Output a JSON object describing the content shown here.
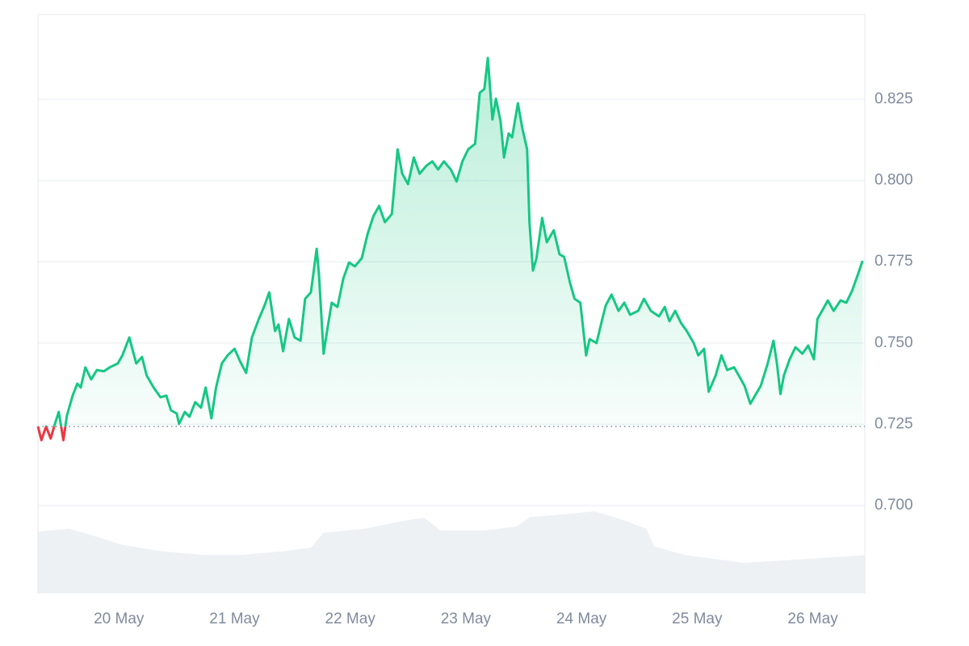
{
  "chart_data": {
    "type": "line",
    "x": [
      19.3,
      19.33,
      19.37,
      19.41,
      19.45,
      19.48,
      19.52,
      19.55,
      19.6,
      19.64,
      19.67,
      19.71,
      19.76,
      19.81,
      19.87,
      19.92,
      19.99,
      20.03,
      20.09,
      20.15,
      20.2,
      20.24,
      20.3,
      20.36,
      20.41,
      20.45,
      20.5,
      20.52,
      20.57,
      20.61,
      20.66,
      20.71,
      20.75,
      20.8,
      20.84,
      20.89,
      20.94,
      21.0,
      21.05,
      21.1,
      21.15,
      21.21,
      21.26,
      21.3,
      21.35,
      21.38,
      21.42,
      21.47,
      21.52,
      21.57,
      21.61,
      21.66,
      21.71,
      21.73,
      21.77,
      21.8,
      21.84,
      21.89,
      21.94,
      21.99,
      22.04,
      22.1,
      22.15,
      22.2,
      22.25,
      22.3,
      22.36,
      22.41,
      22.45,
      22.5,
      22.55,
      22.6,
      22.66,
      22.71,
      22.76,
      22.81,
      22.87,
      22.92,
      22.97,
      23.02,
      23.08,
      23.12,
      23.16,
      23.19,
      23.23,
      23.26,
      23.3,
      23.33,
      23.37,
      23.4,
      23.45,
      23.49,
      23.53,
      23.55,
      23.58,
      23.61,
      23.66,
      23.7,
      23.76,
      23.81,
      23.85,
      23.9,
      23.94,
      23.99,
      24.04,
      24.07,
      24.13,
      24.18,
      24.21,
      24.26,
      24.32,
      24.37,
      24.42,
      24.49,
      24.54,
      24.6,
      24.67,
      24.72,
      24.76,
      24.81,
      24.86,
      24.91,
      24.97,
      25.01,
      25.06,
      25.1,
      25.16,
      25.21,
      25.26,
      25.32,
      25.36,
      25.41,
      25.46,
      25.5,
      25.55,
      25.61,
      25.66,
      25.69,
      25.72,
      25.75,
      25.8,
      25.85,
      25.91,
      25.96,
      26.01,
      26.04,
      26.08,
      26.13,
      26.18,
      26.24,
      26.29,
      26.34,
      26.39,
      26.43
    ],
    "values": [
      0.7243,
      0.7201,
      0.7243,
      0.7206,
      0.7255,
      0.7288,
      0.7201,
      0.7276,
      0.7338,
      0.7375,
      0.7363,
      0.7425,
      0.7388,
      0.7417,
      0.7413,
      0.7425,
      0.7437,
      0.7462,
      0.7517,
      0.7437,
      0.7457,
      0.74,
      0.7363,
      0.7333,
      0.7338,
      0.7293,
      0.7283,
      0.7251,
      0.7288,
      0.7273,
      0.7318,
      0.7301,
      0.7363,
      0.7268,
      0.7363,
      0.7437,
      0.7462,
      0.7482,
      0.7442,
      0.7408,
      0.7517,
      0.7574,
      0.7616,
      0.7656,
      0.7537,
      0.7557,
      0.7475,
      0.7574,
      0.7517,
      0.7507,
      0.7636,
      0.7656,
      0.779,
      0.7711,
      0.7467,
      0.7537,
      0.7624,
      0.7611,
      0.7698,
      0.7748,
      0.7736,
      0.7761,
      0.7835,
      0.789,
      0.7922,
      0.7872,
      0.7897,
      0.8096,
      0.8021,
      0.7989,
      0.8071,
      0.8021,
      0.8046,
      0.8059,
      0.8034,
      0.8059,
      0.8034,
      0.7997,
      0.8059,
      0.8096,
      0.8113,
      0.827,
      0.8282,
      0.8377,
      0.8188,
      0.8252,
      0.8183,
      0.8071,
      0.8145,
      0.8133,
      0.8238,
      0.8158,
      0.8096,
      0.7872,
      0.7723,
      0.776,
      0.7885,
      0.781,
      0.7847,
      0.7773,
      0.7765,
      0.7686,
      0.7636,
      0.7624,
      0.7462,
      0.7512,
      0.75,
      0.7574,
      0.7616,
      0.7649,
      0.7599,
      0.7624,
      0.7587,
      0.7599,
      0.7636,
      0.7599,
      0.7582,
      0.7611,
      0.7567,
      0.7599,
      0.7562,
      0.7537,
      0.75,
      0.7462,
      0.7482,
      0.735,
      0.74,
      0.7462,
      0.7417,
      0.7425,
      0.74,
      0.7368,
      0.7313,
      0.7338,
      0.7368,
      0.7437,
      0.7507,
      0.7437,
      0.7343,
      0.74,
      0.745,
      0.7487,
      0.7467,
      0.7492,
      0.745,
      0.7574,
      0.7599,
      0.7631,
      0.7599,
      0.7631,
      0.7624,
      0.7661,
      0.7711,
      0.7753
    ],
    "color": "#16c784",
    "down_color": "#ea3943",
    "baseline": 0.7243,
    "xlim": [
      19.3,
      26.45
    ],
    "ylim": [
      0.6729,
      0.8511
    ],
    "xticks": [
      {
        "value": 20,
        "label": "20 May"
      },
      {
        "value": 21,
        "label": "21 May"
      },
      {
        "value": 22,
        "label": "22 May"
      },
      {
        "value": 23,
        "label": "23 May"
      },
      {
        "value": 24,
        "label": "24 May"
      },
      {
        "value": 25,
        "label": "25 May"
      },
      {
        "value": 26,
        "label": "26 May"
      }
    ],
    "yticks": [
      {
        "value": 0.7,
        "label": "0.700"
      },
      0.725,
      {
        "value": 0.75,
        "label": "0.750"
      },
      0.775,
      {
        "value": 0.8,
        "label": "0.800"
      },
      0.825
    ],
    "grid": true,
    "volume": {
      "color": "#eef1f4",
      "lim": [
        0,
        100
      ],
      "x": [
        19.3,
        19.57,
        19.81,
        20.03,
        20.37,
        20.72,
        21.07,
        21.42,
        21.66,
        21.77,
        22.12,
        22.47,
        22.64,
        22.78,
        23.16,
        23.44,
        23.55,
        23.86,
        24.11,
        24.35,
        24.56,
        24.63,
        24.91,
        25.26,
        25.4,
        25.96,
        26.45
      ],
      "values": [
        10.7,
        11.2,
        9.8,
        8.4,
        7.3,
        6.7,
        6.7,
        7.3,
        7.9,
        10.5,
        11.2,
        12.6,
        13.1,
        10.9,
        10.9,
        11.6,
        13.2,
        13.7,
        14.2,
        12.8,
        11.2,
        8.1,
        6.6,
        5.7,
        5.3,
        6.0,
        6.6
      ]
    }
  }
}
